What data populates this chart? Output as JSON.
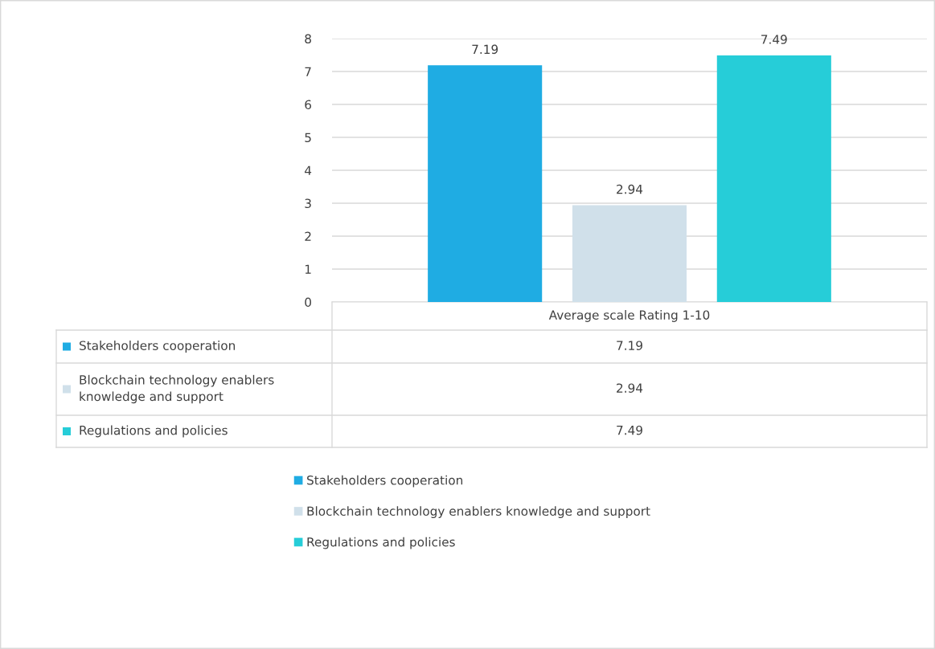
{
  "chart_data": {
    "type": "bar",
    "categories": [
      "Average scale Rating 1-10"
    ],
    "series": [
      {
        "name": "Stakeholders cooperation",
        "color": "#1face3",
        "values": [
          7.19
        ],
        "value_labels": [
          "7.19"
        ]
      },
      {
        "name": "Blockchain technology enablers knowledge and support",
        "color": "#d0e0ea",
        "values": [
          2.94
        ],
        "value_labels": [
          "2.94"
        ]
      },
      {
        "name": "Regulations and policies",
        "color": "#26cdd8",
        "values": [
          7.49
        ],
        "value_labels": [
          "7.49"
        ]
      }
    ],
    "ylim": [
      0,
      8
    ],
    "yticks": [
      0,
      1,
      2,
      3,
      4,
      5,
      6,
      7,
      8
    ],
    "annotations": [
      "7.19",
      "2.94",
      "7.49"
    ],
    "grid": "y",
    "legend": "bottom"
  }
}
